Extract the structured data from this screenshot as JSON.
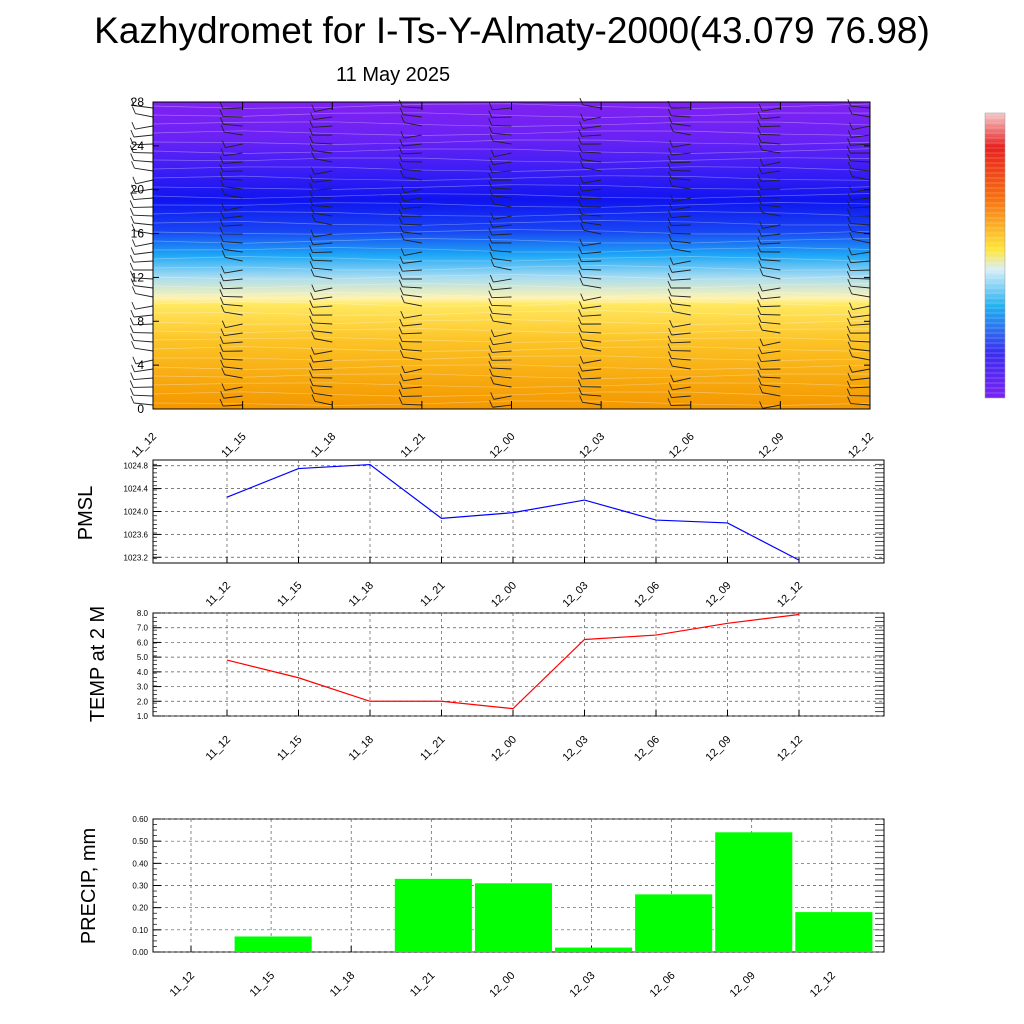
{
  "title": "Kazhydromet for I-Ts-Y-Almaty-2000(43.079 76.98)",
  "subtitle": "11 May 2025",
  "colors": {
    "pmsl_line": "#0000ff",
    "temp_line": "#ff0000",
    "precip_bar": "#00ff00",
    "cross_cold": "#7f22f2",
    "cross_warm": "#f5a000"
  },
  "chart_data": [
    {
      "id": "cross_section",
      "type": "heatmap",
      "title": "",
      "xlabel": "",
      "ylabel": "",
      "x_tick_labels": [
        "11_12",
        "11_15",
        "11_18",
        "11_21",
        "12_00",
        "12_03",
        "12_06",
        "12_09",
        "12_12"
      ],
      "y_ticks": [
        0,
        4,
        8,
        12,
        16,
        20,
        24,
        28
      ],
      "ylim": [
        0,
        28
      ],
      "legend": "colorbar on the right, no tick labels",
      "grid": false
    },
    {
      "id": "pmsl",
      "type": "line",
      "ylabel": "PMSL",
      "categories": [
        "11_12",
        "11_15",
        "11_18",
        "11_21",
        "12_00",
        "12_03",
        "12_06",
        "12_09",
        "12_12"
      ],
      "values": [
        1024.25,
        1024.75,
        1024.82,
        1023.88,
        1023.98,
        1024.2,
        1023.85,
        1023.8,
        1023.15
      ],
      "y_ticks": [
        "1023.2",
        "1023.6",
        "1024.0",
        "1024.4",
        "1024.8"
      ],
      "ylim": [
        1023.1,
        1024.9
      ],
      "grid": true
    },
    {
      "id": "temp",
      "type": "line",
      "ylabel": "TEMP at 2 M",
      "categories": [
        "11_12",
        "11_15",
        "11_18",
        "11_21",
        "12_00",
        "12_03",
        "12_06",
        "12_09",
        "12_12"
      ],
      "values": [
        4.8,
        3.6,
        2.0,
        2.0,
        1.5,
        6.2,
        6.5,
        7.3,
        7.9
      ],
      "y_ticks": [
        "1.0",
        "2.0",
        "3.0",
        "4.0",
        "5.0",
        "6.0",
        "7.0",
        "8.0"
      ],
      "ylim": [
        1.0,
        8.0
      ],
      "grid": true
    },
    {
      "id": "precip",
      "type": "bar",
      "ylabel": "PRECIP, mm",
      "categories": [
        "11_12",
        "11_15",
        "11_18",
        "11_21",
        "12_00",
        "12_03",
        "12_06",
        "12_09",
        "12_12"
      ],
      "values": [
        0.0,
        0.07,
        0.0,
        0.33,
        0.31,
        0.02,
        0.26,
        0.54,
        0.18
      ],
      "y_ticks": [
        "0.00",
        "0.10",
        "0.20",
        "0.30",
        "0.40",
        "0.50",
        "0.60"
      ],
      "ylim": [
        0.0,
        0.6
      ],
      "grid": true
    }
  ]
}
